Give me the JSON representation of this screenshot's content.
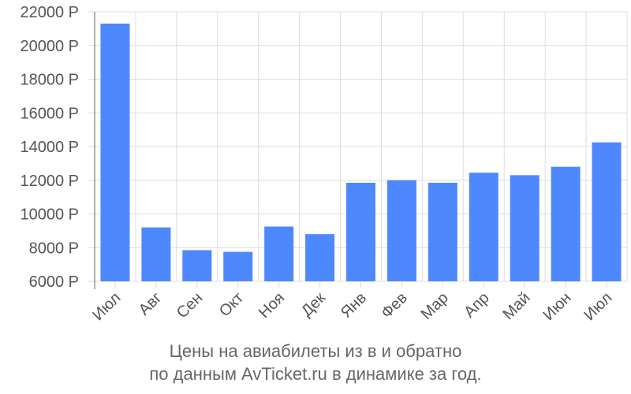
{
  "chart_data": {
    "type": "bar",
    "categories": [
      "Июл",
      "Авг",
      "Сен",
      "Окт",
      "Ноя",
      "Дек",
      "Янв",
      "Фев",
      "Мар",
      "Апр",
      "Май",
      "Июн",
      "Июл"
    ],
    "values": [
      21300,
      9200,
      7850,
      7750,
      9250,
      8800,
      11850,
      12000,
      11850,
      12450,
      12300,
      12800,
      14250
    ],
    "ylim": [
      6000,
      22000
    ],
    "yticks": [
      6000,
      8000,
      10000,
      12000,
      14000,
      16000,
      18000,
      20000,
      22000
    ],
    "ytick_labels": [
      "6000 Р",
      "8000 Р",
      "10000 Р",
      "12000 Р",
      "14000 Р",
      "16000 Р",
      "18000 Р",
      "20000 Р",
      "22000 Р"
    ],
    "grid": true,
    "colors": {
      "bar": "#4d88ff",
      "grid": "#dddddd",
      "axis": "#999999",
      "text": "#555555"
    }
  },
  "caption": {
    "line1": "Цены на авиабилеты из  в  и обратно",
    "line2": "по данным AvTicket.ru в динамике за год."
  }
}
